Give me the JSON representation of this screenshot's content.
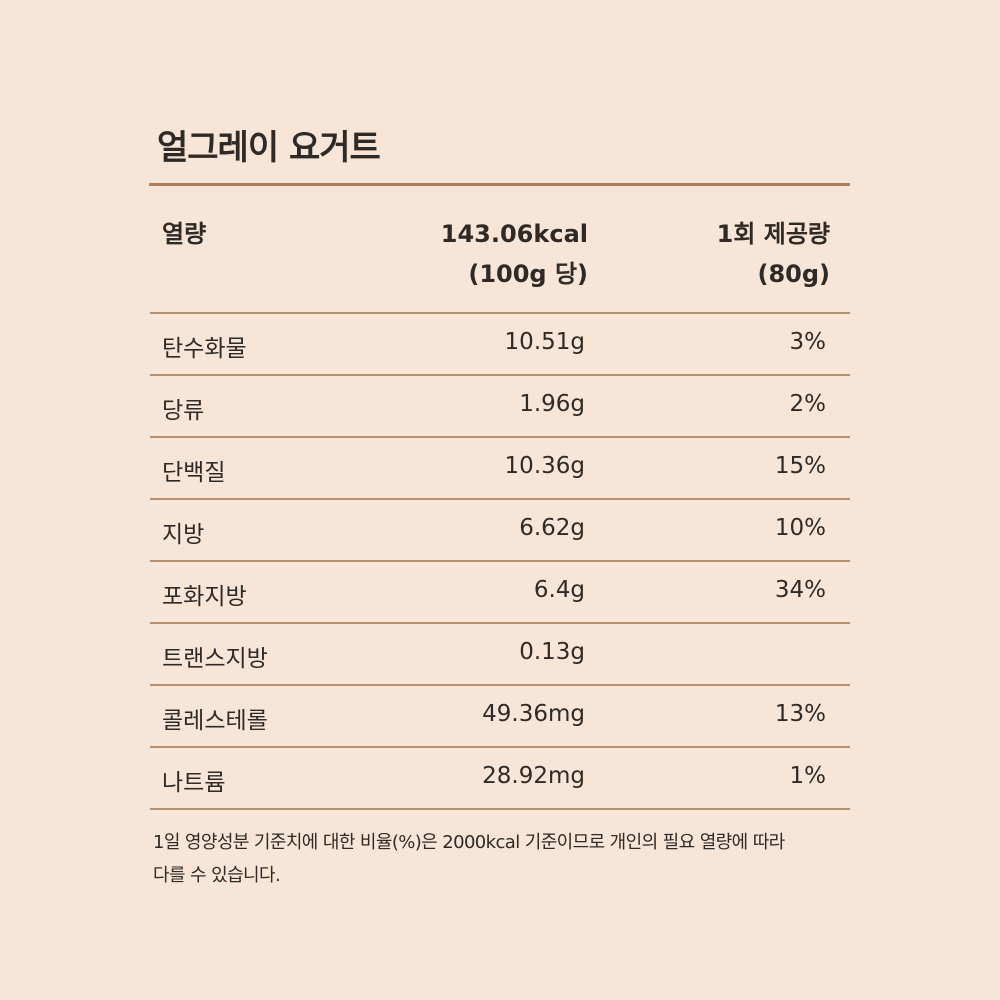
{
  "title": "얼그레이 요거트",
  "header": {
    "col1": "열량",
    "col2_line1": "143.06kcal",
    "col2_line2": "(100g 당)",
    "col3_line1": "1회 제공량",
    "col3_line2": "(80g)"
  },
  "rows": [
    {
      "name": "탄수화물",
      "amount": "10.51g",
      "percent": "3%"
    },
    {
      "name": "당류",
      "amount": "1.96g",
      "percent": "2%"
    },
    {
      "name": "단백질",
      "amount": "10.36g",
      "percent": "15%"
    },
    {
      "name": "지방",
      "amount": "6.62g",
      "percent": "10%"
    },
    {
      "name": "포화지방",
      "amount": "6.4g",
      "percent": "34%"
    },
    {
      "name": "트랜스지방",
      "amount": "0.13g",
      "percent": ""
    },
    {
      "name": "콜레스테롤",
      "amount": "49.36mg",
      "percent": "13%"
    },
    {
      "name": "나트륨",
      "amount": "28.92mg",
      "percent": "1%"
    }
  ],
  "footnote_line1": "1일 영양성분 기준치에 대한 비율(%)은 2000kcal 기준이므로 개인의 필요 열량에 따라",
  "footnote_line2": "다를 수 있습니다.",
  "colors": {
    "background": "#f7e6d7",
    "rule": "#b07f5c",
    "text": "#2f2a26"
  }
}
